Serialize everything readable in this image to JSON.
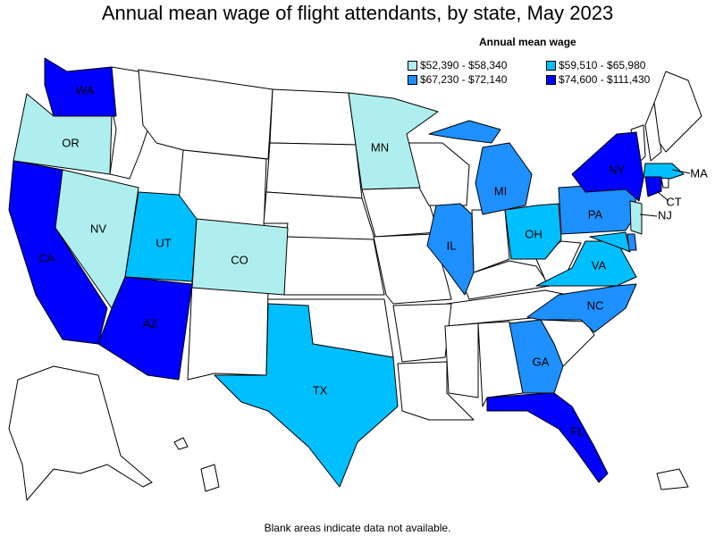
{
  "title": "Annual mean wage of flight attendants, by state, May 2023",
  "legend": {
    "title": "Annual mean wage",
    "items": [
      {
        "range": "$52,390 - $58,340",
        "color": "#afeeee"
      },
      {
        "range": "$59,510 - $65,980",
        "color": "#00bfff"
      },
      {
        "range": "$67,230 - $72,140",
        "color": "#1e90ff"
      },
      {
        "range": "$74,600 - $111,430",
        "color": "#0000ff"
      }
    ]
  },
  "footnote": "Blank areas indicate data not available.",
  "states": {
    "WA": {
      "label": "WA",
      "tier": 4
    },
    "OR": {
      "label": "OR",
      "tier": 1
    },
    "CA": {
      "label": "CA",
      "tier": 4
    },
    "NV": {
      "label": "NV",
      "tier": 1
    },
    "UT": {
      "label": "UT",
      "tier": 2
    },
    "AZ": {
      "label": "AZ",
      "tier": 4
    },
    "CO": {
      "label": "CO",
      "tier": 1
    },
    "TX": {
      "label": "TX",
      "tier": 2
    },
    "MN": {
      "label": "MN",
      "tier": 1
    },
    "IL": {
      "label": "IL",
      "tier": 3
    },
    "MI": {
      "label": "MI",
      "tier": 3
    },
    "OH": {
      "label": "OH",
      "tier": 2
    },
    "PA": {
      "label": "PA",
      "tier": 3
    },
    "NY": {
      "label": "NY",
      "tier": 4
    },
    "VA": {
      "label": "VA",
      "tier": 2
    },
    "NC": {
      "label": "NC",
      "tier": 3
    },
    "GA": {
      "label": "GA",
      "tier": 3
    },
    "FL": {
      "label": "FL",
      "tier": 4
    },
    "MA": {
      "label": "MA",
      "tier": 2
    },
    "CT": {
      "label": "CT",
      "tier": 4
    },
    "NJ": {
      "label": "NJ",
      "tier": 1
    },
    "MD": {
      "label": "",
      "tier": 2
    },
    "DE": {
      "label": "",
      "tier": 3
    }
  }
}
